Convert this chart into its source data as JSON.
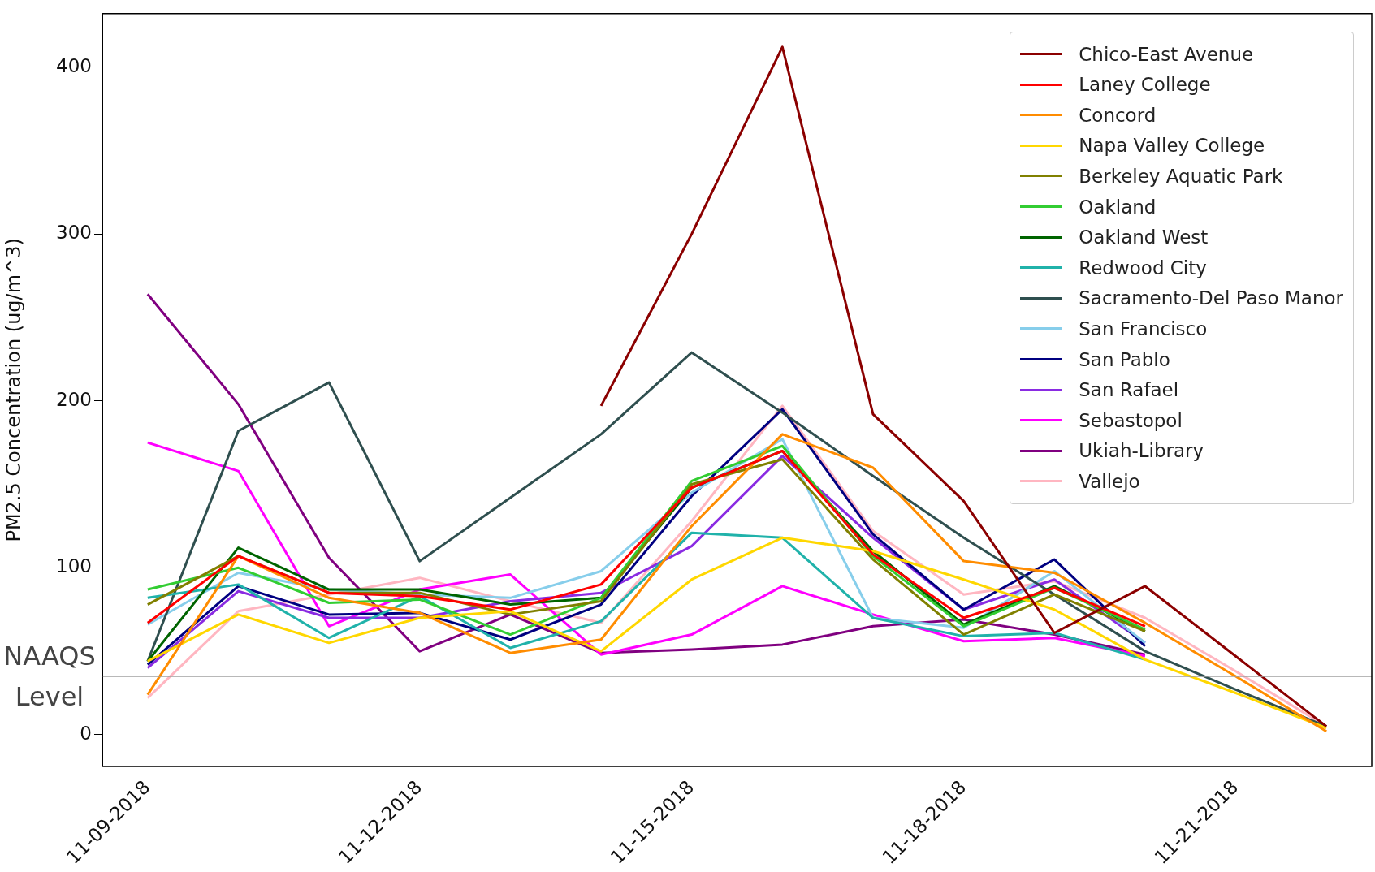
{
  "chart_data": {
    "type": "line",
    "ylabel": "PM2.5 Concentration (ug/m^3)",
    "categories": [
      "11-09-2018",
      null,
      null,
      "11-12-2018",
      null,
      null,
      "11-15-2018",
      null,
      null,
      "11-18-2018",
      null,
      null,
      "11-21-2018",
      null
    ],
    "series": [
      {
        "name": "Chico-East Avenue",
        "color": "#8b0000",
        "values": [
          null,
          null,
          null,
          null,
          null,
          197,
          300,
          412,
          192,
          140,
          61,
          89,
          47,
          5
        ]
      },
      {
        "name": "Laney College",
        "color": "#ff0000",
        "values": [
          67,
          107,
          85,
          83,
          75,
          90,
          148,
          170,
          108,
          70,
          88,
          65,
          null,
          null
        ]
      },
      {
        "name": "Concord",
        "color": "#ff8c00",
        "values": [
          24,
          107,
          82,
          73,
          49,
          57,
          125,
          180,
          160,
          104,
          97,
          67,
          35,
          2
        ]
      },
      {
        "name": "Napa Valley College",
        "color": "#ffd700",
        "values": [
          44,
          72,
          55,
          70,
          74,
          50,
          93,
          118,
          110,
          93,
          75,
          45,
          25,
          4
        ]
      },
      {
        "name": "Berkeley Aquatic Park",
        "color": "#808000",
        "values": [
          78,
          107,
          85,
          85,
          72,
          80,
          150,
          165,
          105,
          60,
          84,
          62,
          null,
          null
        ]
      },
      {
        "name": "Oakland",
        "color": "#32cd32",
        "values": [
          87,
          100,
          79,
          81,
          60,
          82,
          152,
          173,
          107,
          65,
          88,
          63,
          null,
          null
        ]
      },
      {
        "name": "Oakland West",
        "color": "#006400",
        "values": [
          44,
          112,
          87,
          87,
          78,
          82,
          148,
          170,
          110,
          66,
          89,
          62,
          null,
          null
        ]
      },
      {
        "name": "Redwood City",
        "color": "#20b2aa",
        "values": [
          82,
          90,
          58,
          83,
          52,
          68,
          121,
          118,
          70,
          59,
          61,
          45,
          null,
          null
        ]
      },
      {
        "name": "Sacramento-Del Paso Manor",
        "color": "#2f4f4f",
        "values": [
          44,
          182,
          211,
          104,
          142,
          180,
          229,
          193,
          155,
          118,
          84,
          50,
          27,
          5
        ]
      },
      {
        "name": "San Francisco",
        "color": "#87ceeb",
        "values": [
          66,
          97,
          87,
          84,
          82,
          98,
          145,
          177,
          70,
          64,
          98,
          55,
          null,
          null
        ]
      },
      {
        "name": "San Pablo",
        "color": "#000080",
        "values": [
          42,
          89,
          72,
          73,
          57,
          78,
          143,
          195,
          120,
          75,
          105,
          53,
          null,
          null
        ]
      },
      {
        "name": "San Rafael",
        "color": "#8a2be2",
        "values": [
          40,
          86,
          70,
          70,
          80,
          85,
          113,
          167,
          118,
          75,
          93,
          55,
          null,
          null
        ]
      },
      {
        "name": "Sebastopol",
        "color": "#ff00ff",
        "values": [
          175,
          158,
          65,
          87,
          96,
          48,
          60,
          89,
          72,
          56,
          58,
          47,
          null,
          null
        ]
      },
      {
        "name": "Ukiah-Library",
        "color": "#800080",
        "values": [
          264,
          198,
          106,
          50,
          72,
          49,
          51,
          54,
          65,
          69,
          60,
          48,
          null,
          null
        ]
      },
      {
        "name": "Vallejo",
        "color": "#ffb6c1",
        "values": [
          22,
          74,
          84,
          94,
          80,
          67,
          128,
          197,
          122,
          84,
          92,
          70,
          38,
          5
        ]
      }
    ],
    "ylim": [
      -19,
      432
    ],
    "yticks": [
      0,
      100,
      200,
      300,
      400
    ],
    "ref_lines": [
      {
        "axis": "y",
        "value": 35,
        "label": "NAAQS Level",
        "color": "#a0a0a0"
      }
    ],
    "legend": "top right",
    "marker": "none"
  }
}
